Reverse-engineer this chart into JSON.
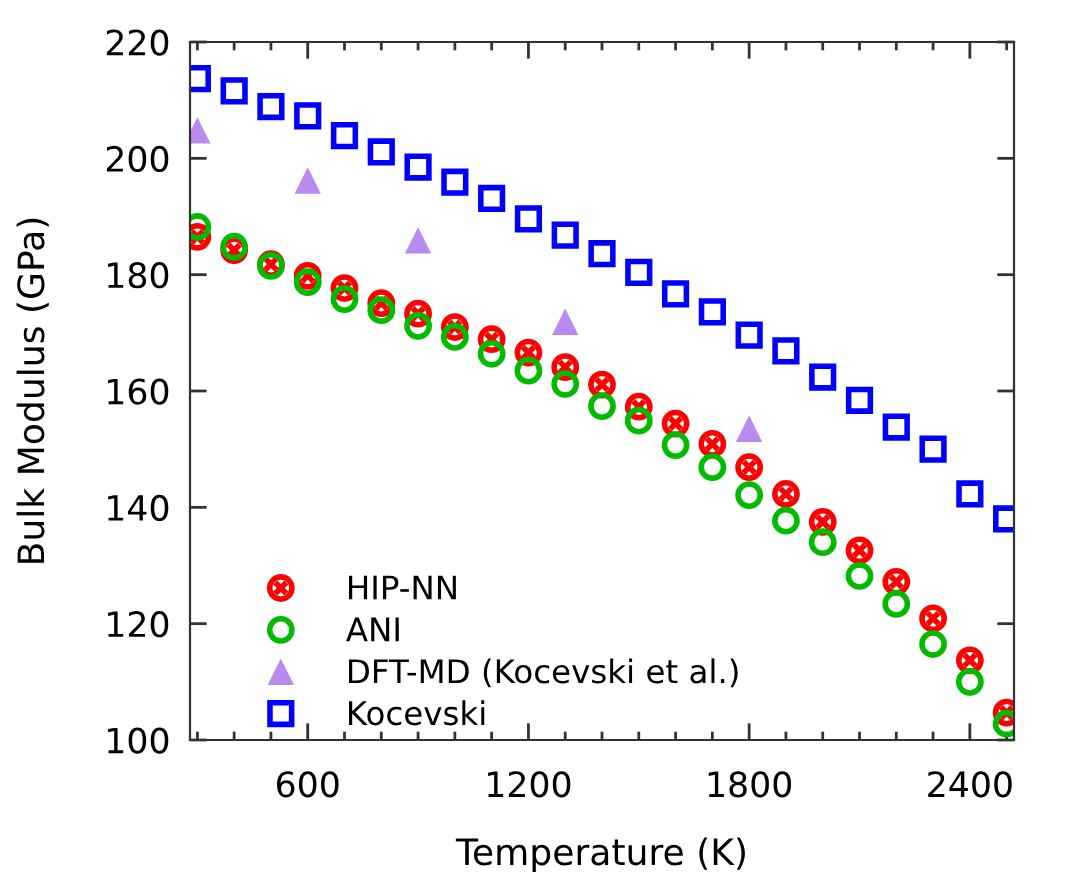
{
  "chart_data": {
    "type": "scatter",
    "xlabel": "Temperature (K)",
    "ylabel": "Bulk Modulus (GPa)",
    "x": [
      300,
      400,
      500,
      600,
      700,
      800,
      900,
      1000,
      1100,
      1200,
      1300,
      1400,
      1500,
      1600,
      1700,
      1800,
      1900,
      2000,
      2100,
      2200,
      2300,
      2400,
      2500
    ],
    "series": [
      {
        "name": "HIP-NN",
        "color": "#ff0000",
        "marker": "cross",
        "values": [
          186.5,
          184.2,
          181.8,
          179.8,
          177.7,
          175.1,
          173.3,
          171.0,
          168.9,
          166.6,
          164.1,
          161.1,
          157.3,
          154.4,
          150.9,
          146.9,
          142.3,
          137.5,
          132.6,
          127.2,
          120.9,
          113.7,
          104.7
        ]
      },
      {
        "name": "ANI",
        "color": "#00bb00",
        "marker": "circle",
        "values": [
          188.2,
          184.8,
          181.5,
          178.7,
          175.8,
          173.9,
          171.2,
          169.3,
          166.4,
          163.5,
          161.2,
          157.4,
          154.9,
          150.7,
          146.9,
          142.1,
          137.7,
          134.0,
          128.2,
          123.4,
          116.5,
          110.0,
          102.8
        ]
      },
      {
        "name": "DFT-MD (Kocevski et al.)",
        "color": "#b98af0",
        "marker": "triangle",
        "x": [
          300,
          600,
          900,
          1300,
          1800
        ],
        "values": [
          204.8,
          196.2,
          185.9,
          171.9,
          153.5
        ]
      },
      {
        "name": "Kocevski",
        "color": "#0000ff",
        "marker": "square",
        "values": [
          213.7,
          211.6,
          208.9,
          207.3,
          203.9,
          201.1,
          198.5,
          195.9,
          193.1,
          189.6,
          186.8,
          183.6,
          180.4,
          176.7,
          173.6,
          169.6,
          166.9,
          162.4,
          158.4,
          153.8,
          150.0,
          142.3,
          138.0
        ]
      }
    ],
    "xlim": [
      280,
      2520
    ],
    "xticks": [
      {
        "value": 300,
        "label": null
      },
      {
        "value": 400,
        "label": null
      },
      {
        "value": 500,
        "label": null
      },
      600,
      {
        "value": 700,
        "label": null
      },
      {
        "value": 800,
        "label": null
      },
      {
        "value": 900,
        "label": null
      },
      {
        "value": 1000,
        "label": null
      },
      {
        "value": 1100,
        "label": null
      },
      1200,
      {
        "value": 1300,
        "label": null
      },
      {
        "value": 1400,
        "label": null
      },
      {
        "value": 1500,
        "label": null
      },
      {
        "value": 1600,
        "label": null
      },
      {
        "value": 1700,
        "label": null
      },
      1800,
      {
        "value": 1900,
        "label": null
      },
      {
        "value": 2000,
        "label": null
      },
      {
        "value": 2100,
        "label": null
      },
      {
        "value": 2200,
        "label": null
      },
      {
        "value": 2300,
        "label": null
      },
      2400,
      {
        "value": 2500,
        "label": null
      }
    ],
    "ylim": [
      100,
      220
    ],
    "yticks": [
      100,
      120,
      140,
      160,
      180,
      200,
      220
    ],
    "legend": "bottom left"
  }
}
